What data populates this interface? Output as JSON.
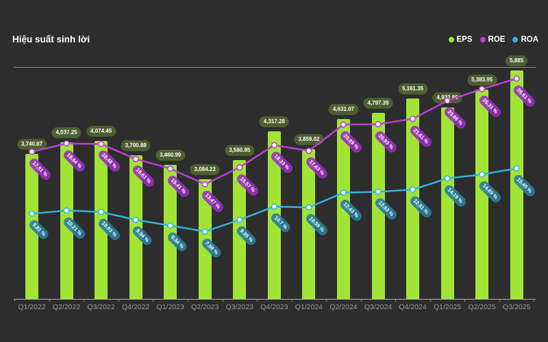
{
  "title": "Hiệu suất sinh lời",
  "legend": [
    {
      "label": "EPS",
      "color": "#a2e436"
    },
    {
      "label": "ROE",
      "color": "#bb3fd4"
    },
    {
      "label": "ROA",
      "color": "#30b4e0"
    }
  ],
  "colors": {
    "background": "#2d2d2d",
    "bar": "#a2e436",
    "eps_label_bg": "rgba(163,228,54,0.28)",
    "roe_line": "#bb3fd4",
    "roe_label_bg": "rgba(154,48,190,0.88)",
    "roa_line": "#30b4e0",
    "roa_label_bg": "rgba(42,125,156,0.9)",
    "axis_text": "#9a9a9a",
    "label_text": "#ffffff"
  },
  "chart_data": {
    "type": "bar+line",
    "title": "Hiệu suất sinh lời",
    "legend_position": "top-right",
    "grid": "single-top-gridline",
    "categories": [
      "Q1/2022",
      "Q2/2022",
      "Q3/2022",
      "Q4/2022",
      "Q1/2023",
      "Q2/2023",
      "Q3/2023",
      "Q4/2023",
      "Q1/2024",
      "Q2/2024",
      "Q3/2024",
      "Q4/2024",
      "Q1/2025",
      "Q2/2025",
      "Q3/2025"
    ],
    "series": [
      {
        "name": "EPS",
        "chart": "bar",
        "axis": "value",
        "values": [
          3740.87,
          4037.25,
          4074.45,
          3700.88,
          3460.99,
          3084.23,
          3580.85,
          4317.28,
          3859.02,
          4631.07,
          4797.39,
          5161.35,
          4932.86,
          5383.95,
          5885
        ],
        "labels": [
          "3,740.87",
          "4,037.25",
          "4,074.45",
          "3,700.88",
          "3,460.99",
          "3,084.23",
          "3,580.85",
          "4,317.28",
          "3,859.02",
          "4,631.07",
          "4,797.39",
          "5,161.35",
          "4,932.86",
          "5,383.95",
          "5,885"
        ]
      },
      {
        "name": "ROE",
        "chart": "line",
        "axis": "percent",
        "values": [
          17.51,
          18.54,
          18.48,
          16.61,
          15.41,
          13.47,
          15.57,
          18.33,
          17.63,
          20.89,
          20.93,
          21.61,
          23.86,
          25.31,
          26.61
        ],
        "labels": [
          "17.51 %",
          "18.54 %",
          "18.48 %",
          "16.61 %",
          "15.41 %",
          "13.47 %",
          "15.57 %",
          "18.33 %",
          "17.63 %",
          "20.89 %",
          "20.93 %",
          "21.61 %",
          "23.86 %",
          "25.31 %",
          "26.61 %"
        ]
      },
      {
        "name": "ROA",
        "chart": "line",
        "axis": "percent",
        "values": [
          9.81,
          10.21,
          10.03,
          9.04,
          8.34,
          7.59,
          9.05,
          10.7,
          10.59,
          12.43,
          12.53,
          12.81,
          14.19,
          14.69,
          15.45
        ],
        "labels": [
          "9.81 %",
          "10.21 %",
          "10.03 %",
          "9.04 %",
          "8.34 %",
          "7.59 %",
          "9.05 %",
          "10.7 %",
          "10.59 %",
          "12.43 %",
          "12.53 %",
          "12.81 %",
          "14.19 %",
          "14.69 %",
          "15.45 %"
        ]
      }
    ]
  }
}
